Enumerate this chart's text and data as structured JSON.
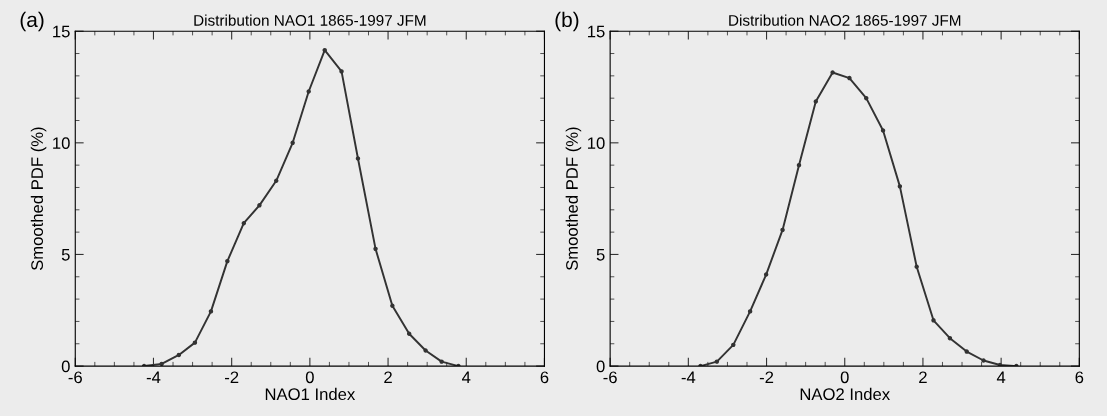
{
  "chart_data": [
    {
      "type": "line",
      "title": "Distribution NAO1 1865-1997 JFM",
      "xlabel": "NAO1 Index",
      "ylabel": "Smoothed PDF (%)",
      "annotations": [
        "(a)"
      ],
      "xlim": [
        -6,
        6
      ],
      "xticks": [
        -6,
        -4,
        -2,
        0,
        2,
        4,
        6
      ],
      "ylim": [
        0,
        15
      ],
      "yticks": [
        0,
        5,
        10,
        15
      ],
      "grid": false,
      "marker": "circle",
      "line_style": "solid",
      "series": [
        {
          "color": "#333333",
          "x": [
            -4.24,
            -3.79,
            -3.35,
            -2.94,
            -2.53,
            -2.11,
            -1.69,
            -1.29,
            -0.86,
            -0.44,
            -0.03,
            0.38,
            0.81,
            1.23,
            1.68,
            2.11,
            2.54,
            2.96,
            3.37,
            3.8
          ],
          "values": [
            0,
            0.1,
            0.5,
            1.05,
            2.45,
            4.7,
            6.4,
            7.2,
            8.3,
            10.0,
            12.3,
            14.15,
            13.2,
            9.3,
            5.25,
            2.7,
            1.45,
            0.7,
            0.2,
            0
          ]
        }
      ]
    },
    {
      "type": "line",
      "title": "Distribution NAO2 1865-1997 JFM",
      "xlabel": "NAO2 Index",
      "ylabel": "Smoothed PDF (%)",
      "annotations": [
        "(b)"
      ],
      "xlim": [
        -6,
        6
      ],
      "xticks": [
        -6,
        -4,
        -2,
        0,
        2,
        4,
        6
      ],
      "ylim": [
        0,
        15
      ],
      "yticks": [
        0,
        5,
        10,
        15
      ],
      "grid": false,
      "marker": "circle",
      "line_style": "solid",
      "series": [
        {
          "color": "#333333",
          "x": [
            -3.69,
            -3.27,
            -2.85,
            -2.42,
            -2.01,
            -1.59,
            -1.17,
            -0.74,
            -0.31,
            0.12,
            0.55,
            0.98,
            1.41,
            1.84,
            2.27,
            2.69,
            3.12,
            3.55,
            3.97,
            4.39
          ],
          "values": [
            0,
            0.2,
            0.95,
            2.45,
            4.1,
            6.1,
            9.0,
            11.85,
            13.15,
            12.9,
            12.0,
            10.55,
            8.05,
            4.45,
            2.05,
            1.25,
            0.65,
            0.25,
            0.05,
            0
          ]
        }
      ]
    }
  ]
}
